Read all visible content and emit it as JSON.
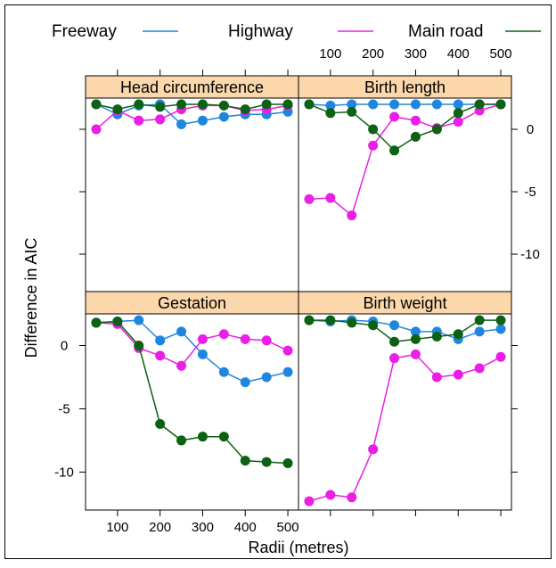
{
  "legend": [
    {
      "name": "Freeway",
      "color": "#1f86e0"
    },
    {
      "name": "Highway",
      "color": "#ea1fe6"
    },
    {
      "name": "Main road",
      "color": "#0c6212"
    }
  ],
  "axes": {
    "xlabel": "Radii (metres)",
    "ylabel": "Difference in AIC",
    "x_ticks": [
      100,
      200,
      300,
      400,
      500
    ],
    "x_tick_labels": [
      "100",
      "200",
      "300",
      "400",
      "500"
    ],
    "top_y_ticks": [
      0,
      -5,
      -10
    ],
    "top_y_tick_labels": [
      "0",
      "-5",
      "-10"
    ],
    "bottom_y_ticks": [
      0,
      -5,
      -10
    ],
    "bottom_y_tick_labels": [
      "0",
      "-5",
      "-10"
    ]
  },
  "chart_data": [
    {
      "type": "line",
      "title": "Head circumference",
      "x": [
        50,
        100,
        150,
        200,
        250,
        300,
        350,
        400,
        450,
        500
      ],
      "xlim": [
        25,
        525
      ],
      "ylim": [
        -13,
        2.5
      ],
      "series": [
        {
          "name": "Freeway",
          "values": [
            2.0,
            1.2,
            1.9,
            2.0,
            0.4,
            0.7,
            1.0,
            1.2,
            1.2,
            1.4
          ]
        },
        {
          "name": "Highway",
          "values": [
            0.0,
            1.5,
            0.7,
            0.8,
            1.6,
            1.9,
            1.9,
            1.5,
            1.6,
            1.9
          ]
        },
        {
          "name": "Main road",
          "values": [
            2.0,
            1.6,
            2.0,
            1.8,
            2.0,
            2.0,
            1.9,
            1.6,
            2.0,
            2.0
          ]
        }
      ]
    },
    {
      "type": "line",
      "title": "Birth length",
      "x": [
        50,
        100,
        150,
        200,
        250,
        300,
        350,
        400,
        450,
        500
      ],
      "xlim": [
        25,
        525
      ],
      "ylim": [
        -13,
        2.5
      ],
      "series": [
        {
          "name": "Freeway",
          "values": [
            2.0,
            1.9,
            2.0,
            2.0,
            2.0,
            2.0,
            2.0,
            2.0,
            2.0,
            2.0
          ]
        },
        {
          "name": "Highway",
          "values": [
            -5.6,
            -5.5,
            -6.9,
            -1.3,
            1.0,
            0.7,
            0.1,
            0.6,
            1.5,
            2.0
          ]
        },
        {
          "name": "Main road",
          "values": [
            2.0,
            1.3,
            1.4,
            0.0,
            -1.7,
            -0.6,
            0.0,
            1.3,
            2.0,
            2.0
          ]
        }
      ]
    },
    {
      "type": "line",
      "title": "Gestation",
      "x": [
        50,
        100,
        150,
        200,
        250,
        300,
        350,
        400,
        450,
        500
      ],
      "xlim": [
        25,
        525
      ],
      "ylim": [
        -13,
        2.5
      ],
      "series": [
        {
          "name": "Freeway",
          "values": [
            1.8,
            1.9,
            2.0,
            0.4,
            1.1,
            -0.7,
            -2.1,
            -2.9,
            -2.5,
            -2.1
          ]
        },
        {
          "name": "Highway",
          "values": [
            1.8,
            1.7,
            -0.2,
            -0.8,
            -1.6,
            0.5,
            0.9,
            0.5,
            0.4,
            -0.4
          ]
        },
        {
          "name": "Main road",
          "values": [
            1.8,
            1.9,
            0.0,
            -6.2,
            -7.5,
            -7.2,
            -7.2,
            -9.1,
            -9.2,
            -9.3
          ]
        }
      ]
    },
    {
      "type": "line",
      "title": "Birth weight",
      "x": [
        50,
        100,
        150,
        200,
        250,
        300,
        350,
        400,
        450,
        500
      ],
      "xlim": [
        25,
        525
      ],
      "ylim": [
        -13,
        2.5
      ],
      "series": [
        {
          "name": "Freeway",
          "values": [
            2.0,
            1.9,
            2.0,
            1.9,
            1.6,
            1.1,
            1.1,
            0.5,
            1.1,
            1.3
          ]
        },
        {
          "name": "Highway",
          "values": [
            -12.3,
            -11.8,
            -12.0,
            -8.2,
            -1.0,
            -0.7,
            -2.5,
            -2.3,
            -1.8,
            -0.9
          ]
        },
        {
          "name": "Main road",
          "values": [
            2.0,
            2.0,
            1.8,
            1.6,
            0.3,
            0.5,
            0.7,
            0.9,
            2.0,
            2.0
          ]
        }
      ]
    }
  ]
}
